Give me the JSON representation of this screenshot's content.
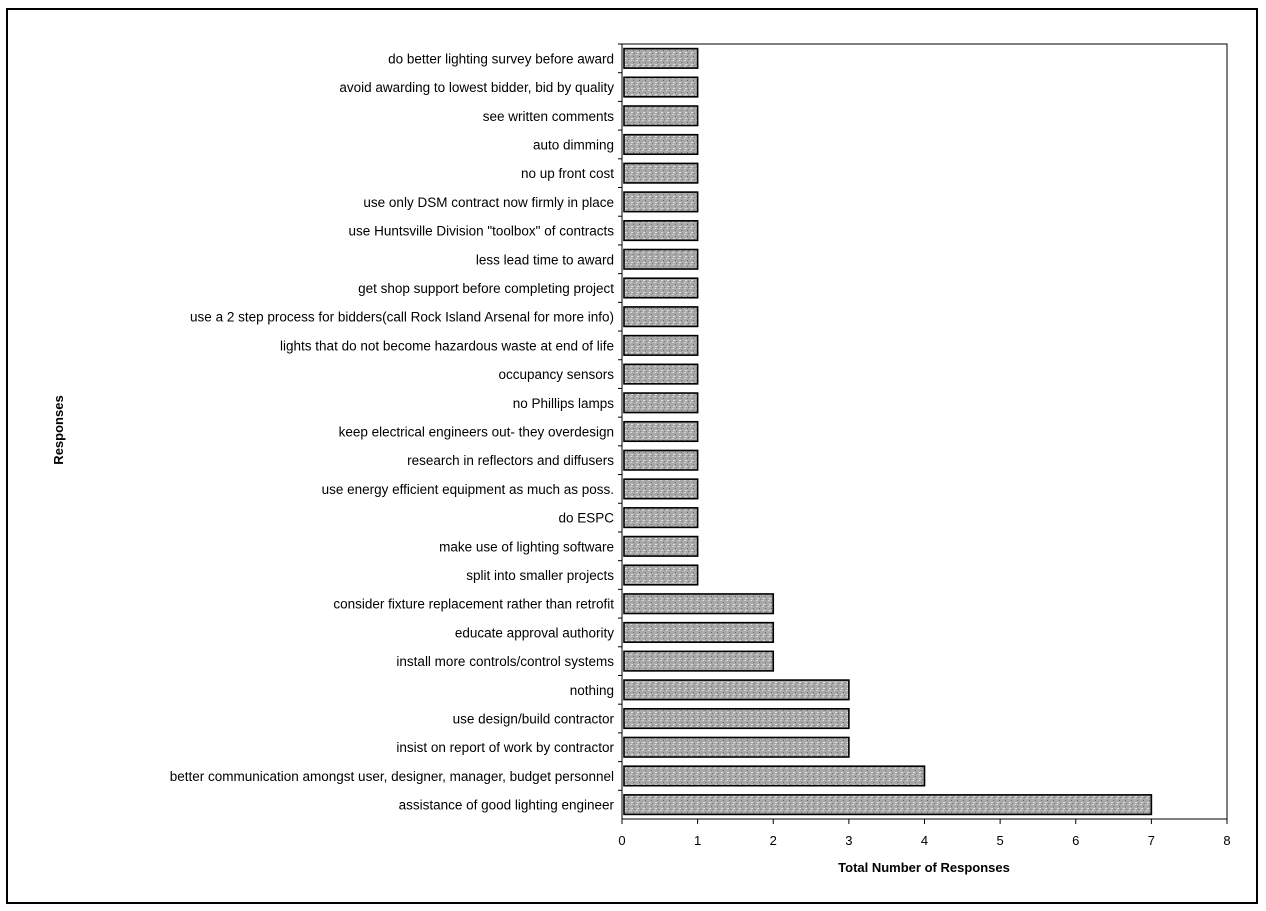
{
  "chart_data": {
    "type": "bar",
    "orientation": "horizontal",
    "xlabel": "Total Number of Responses",
    "ylabel": "Responses",
    "xlim": [
      0,
      8
    ],
    "xticks": [
      "0",
      "1",
      "2",
      "3",
      "4",
      "5",
      "6",
      "7",
      "8"
    ],
    "grid": false,
    "categories": [
      "do better lighting survey before award",
      "avoid awarding to lowest bidder, bid by quality",
      "see written comments",
      "auto dimming",
      "no up front cost",
      "use only DSM contract now firmly in place",
      "use Huntsville Division \"toolbox\" of contracts",
      "less lead time to award",
      "get shop support before completing project",
      "use a 2 step process for bidders(call Rock Island Arsenal for more info)",
      "lights that do not become hazardous waste at end of life",
      "occupancy sensors",
      "no Phillips lamps",
      "keep electrical engineers out- they overdesign",
      "research in reflectors and diffusers",
      "use energy efficient equipment as much as poss.",
      "do ESPC",
      "make use of lighting software",
      "split into smaller projects",
      "consider fixture replacement rather than retrofit",
      "educate approval authority",
      "install more controls/control systems",
      "nothing",
      "use design/build contractor",
      "insist on report of work by contractor",
      "better communication amongst user, designer, manager, budget personnel",
      "assistance of good lighting engineer"
    ],
    "values": [
      1,
      1,
      1,
      1,
      1,
      1,
      1,
      1,
      1,
      1,
      1,
      1,
      1,
      1,
      1,
      1,
      1,
      1,
      1,
      2,
      2,
      2,
      3,
      3,
      3,
      4,
      7
    ],
    "bar_color": "#a8a8a8",
    "bar_edge_color": "#000000"
  }
}
